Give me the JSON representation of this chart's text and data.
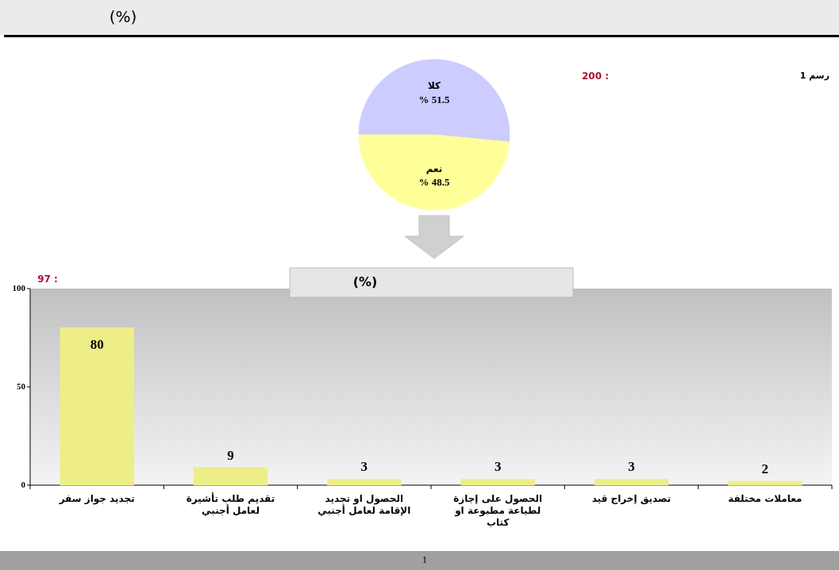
{
  "chart_data": [
    {
      "type": "pie",
      "title": "(%)",
      "annotations": [
        "رسم 1",
        "200 :"
      ],
      "categories": [
        "كلا",
        "نعم"
      ],
      "values": [
        51.5,
        48.5
      ],
      "colors": [
        "#ccccff",
        "#ffff99"
      ],
      "value_labels": [
        "% 51.5",
        "% 48.5"
      ]
    },
    {
      "type": "bar",
      "title": "(%)",
      "annotations": [
        "97 :",
        "1"
      ],
      "categories": [
        "تجديد جواز سفر",
        "تقديم طلب تأشيرة لعامل أجنبي",
        "الحصول او تجديد الإقامة لعامل أجنبي",
        "الحصول على إجازة لطباعة مطبوعة او كتاب",
        "تصديق إخراج قيد",
        "معاملات مختلفة"
      ],
      "values": [
        80,
        9,
        3,
        3,
        3,
        2
      ],
      "color": "#eeee88",
      "ylim": [
        0,
        100
      ],
      "yticks": [
        0,
        50,
        100
      ],
      "data_labels": true
    }
  ]
}
